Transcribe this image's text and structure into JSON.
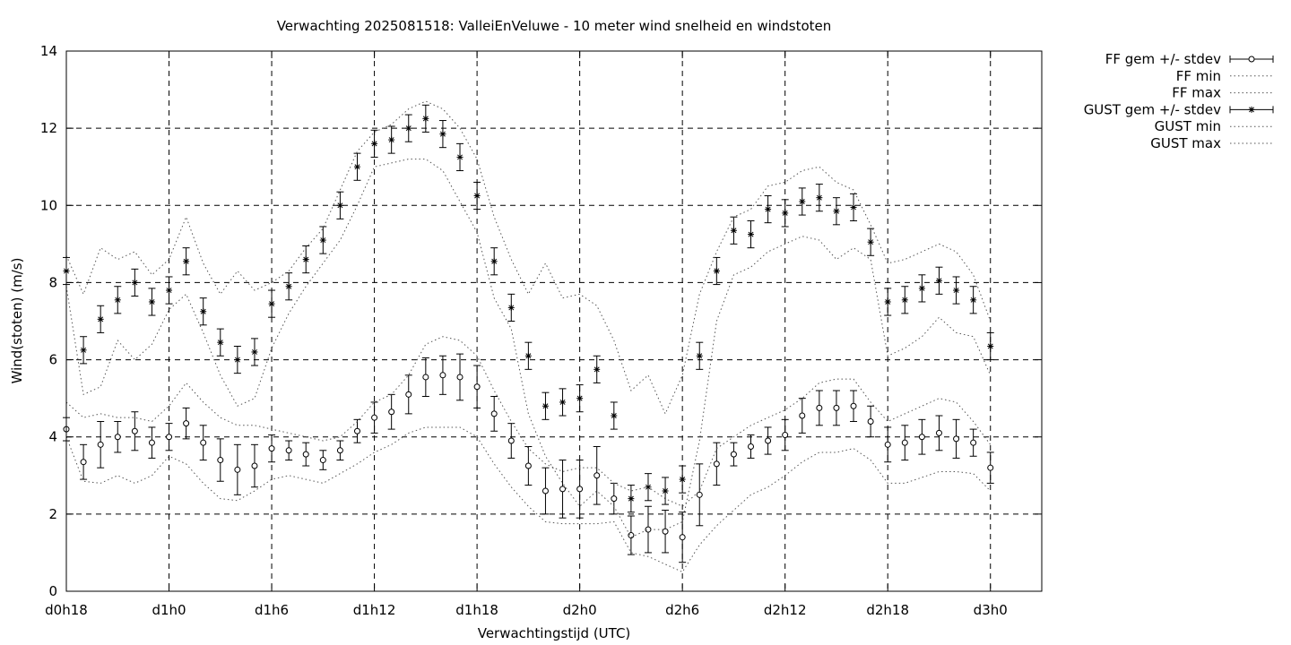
{
  "chart_data": {
    "type": "line",
    "title": "Verwachting 2025081518: ValleiEnVeluwe - 10 meter wind snelheid en windstoten",
    "xlabel": "Verwachtingstijd (UTC)",
    "ylabel": "Wind(stoten) (m/s)",
    "ylim": [
      0,
      14
    ],
    "yticks": [
      0,
      2,
      4,
      6,
      8,
      10,
      12,
      14
    ],
    "xlim": [
      18,
      75
    ],
    "xticks": [
      {
        "value": 18,
        "label": "d0h18"
      },
      {
        "value": 24,
        "label": "d1h0"
      },
      {
        "value": 30,
        "label": "d1h6"
      },
      {
        "value": 36,
        "label": "d1h12"
      },
      {
        "value": 42,
        "label": "d1h18"
      },
      {
        "value": 48,
        "label": "d2h0"
      },
      {
        "value": 54,
        "label": "d2h6"
      },
      {
        "value": 60,
        "label": "d2h12"
      },
      {
        "value": 66,
        "label": "d2h18"
      },
      {
        "value": 72,
        "label": "d3h0"
      }
    ],
    "grid": true,
    "legend_position": "right-outside",
    "x": [
      18,
      19,
      20,
      21,
      22,
      23,
      24,
      25,
      26,
      27,
      28,
      29,
      30,
      31,
      32,
      33,
      34,
      35,
      36,
      37,
      38,
      39,
      40,
      41,
      42,
      43,
      44,
      45,
      46,
      47,
      48,
      49,
      50,
      51,
      52,
      53,
      54,
      55,
      56,
      57,
      58,
      59,
      60,
      61,
      62,
      63,
      64,
      65,
      66,
      67,
      68,
      69,
      70,
      71,
      72
    ],
    "series": [
      {
        "name": "FF gem +/- stdev",
        "style": "points-errorbars",
        "marker": "circle",
        "values": [
          4.2,
          3.35,
          3.8,
          4.0,
          4.15,
          3.85,
          4.0,
          4.35,
          3.85,
          3.4,
          3.15,
          3.25,
          3.7,
          3.65,
          3.55,
          3.4,
          3.65,
          4.15,
          4.5,
          4.65,
          5.1,
          5.55,
          5.6,
          5.55,
          5.3,
          4.6,
          3.9,
          3.25,
          2.6,
          2.65,
          2.65,
          3.0,
          2.4,
          1.45,
          1.6,
          1.55,
          1.4,
          2.5,
          3.3,
          3.55,
          3.75,
          3.9,
          4.05,
          4.55,
          4.75,
          4.75,
          4.8,
          4.4,
          3.8,
          3.85,
          4.0,
          4.1,
          3.95,
          3.85,
          3.2
        ],
        "stdev": [
          0.3,
          0.45,
          0.6,
          0.4,
          0.5,
          0.4,
          0.35,
          0.4,
          0.45,
          0.55,
          0.65,
          0.55,
          0.35,
          0.25,
          0.3,
          0.25,
          0.25,
          0.3,
          0.4,
          0.45,
          0.5,
          0.5,
          0.5,
          0.6,
          0.55,
          0.45,
          0.45,
          0.5,
          0.6,
          0.75,
          0.75,
          0.75,
          0.4,
          0.5,
          0.6,
          0.55,
          0.65,
          0.8,
          0.55,
          0.3,
          0.3,
          0.35,
          0.4,
          0.45,
          0.45,
          0.45,
          0.4,
          0.4,
          0.45,
          0.45,
          0.45,
          0.45,
          0.5,
          0.35,
          0.4
        ]
      },
      {
        "name": "FF min",
        "style": "dotted-line",
        "values": [
          4.0,
          2.85,
          2.8,
          3.0,
          2.8,
          3.0,
          3.5,
          3.3,
          2.8,
          2.4,
          2.35,
          2.6,
          2.9,
          3.0,
          2.9,
          2.8,
          3.05,
          3.3,
          3.6,
          3.8,
          4.1,
          4.25,
          4.25,
          4.25,
          4.0,
          3.3,
          2.7,
          2.2,
          1.8,
          1.75,
          1.75,
          1.75,
          1.8,
          1.0,
          0.9,
          0.7,
          0.5,
          1.2,
          1.7,
          2.1,
          2.5,
          2.7,
          3.0,
          3.35,
          3.6,
          3.6,
          3.7,
          3.4,
          2.8,
          2.8,
          2.95,
          3.1,
          3.1,
          3.05,
          2.6
        ]
      },
      {
        "name": "FF max",
        "style": "dotted-line",
        "values": [
          4.9,
          4.5,
          4.6,
          4.5,
          4.5,
          4.4,
          4.8,
          5.4,
          4.9,
          4.5,
          4.3,
          4.3,
          4.2,
          4.1,
          4.0,
          3.9,
          4.0,
          4.4,
          4.9,
          5.1,
          5.6,
          6.4,
          6.6,
          6.5,
          6.1,
          5.2,
          4.4,
          3.7,
          3.3,
          3.1,
          3.2,
          3.2,
          2.8,
          2.6,
          2.7,
          2.4,
          2.2,
          2.6,
          3.7,
          4.0,
          4.3,
          4.5,
          4.7,
          5.0,
          5.4,
          5.5,
          5.5,
          4.9,
          4.4,
          4.6,
          4.8,
          5.0,
          4.9,
          4.4,
          3.8
        ]
      },
      {
        "name": "GUST gem +/- stdev",
        "style": "points-errorbars",
        "marker": "star",
        "values": [
          8.3,
          6.25,
          7.05,
          7.55,
          8.0,
          7.5,
          7.8,
          8.55,
          7.25,
          6.45,
          6.0,
          6.2,
          7.45,
          7.9,
          8.6,
          9.1,
          10.0,
          11.0,
          11.6,
          11.7,
          12.0,
          12.25,
          11.85,
          11.25,
          10.25,
          8.55,
          7.35,
          6.1,
          4.8,
          4.9,
          5.0,
          5.75,
          4.55,
          2.4,
          2.7,
          2.6,
          2.9,
          6.1,
          8.3,
          9.35,
          9.25,
          9.9,
          9.8,
          10.1,
          10.2,
          9.85,
          9.95,
          9.05,
          7.5,
          7.55,
          7.85,
          8.05,
          7.8,
          7.55,
          6.35
        ]
      },
      {
        "name": "GUST min",
        "style": "dotted-line",
        "values": [
          7.9,
          5.1,
          5.3,
          6.5,
          6.0,
          6.4,
          7.3,
          7.7,
          6.7,
          5.6,
          4.8,
          5.0,
          6.3,
          7.2,
          7.9,
          8.5,
          9.1,
          10.0,
          11.0,
          11.1,
          11.2,
          11.2,
          10.9,
          10.1,
          9.3,
          7.6,
          6.8,
          4.6,
          3.5,
          2.8,
          2.2,
          2.6,
          2.2,
          1.4,
          1.6,
          1.6,
          1.8,
          3.9,
          7.0,
          8.2,
          8.4,
          8.8,
          9.0,
          9.2,
          9.1,
          8.6,
          8.9,
          8.6,
          6.1,
          6.3,
          6.6,
          7.1,
          6.7,
          6.6,
          5.6
        ]
      },
      {
        "name": "GUST max",
        "style": "dotted-line",
        "values": [
          8.7,
          7.7,
          8.9,
          8.6,
          8.8,
          8.2,
          8.6,
          9.7,
          8.5,
          7.7,
          8.3,
          7.8,
          8.0,
          8.3,
          8.9,
          9.4,
          10.4,
          11.4,
          11.9,
          12.1,
          12.5,
          12.7,
          12.5,
          12.0,
          11.2,
          9.7,
          8.6,
          7.7,
          8.5,
          7.6,
          7.7,
          7.4,
          6.5,
          5.2,
          5.6,
          4.6,
          5.6,
          7.7,
          8.8,
          9.7,
          9.9,
          10.5,
          10.6,
          10.9,
          11.0,
          10.6,
          10.4,
          9.5,
          8.5,
          8.6,
          8.8,
          9.0,
          8.8,
          8.2,
          7.0
        ]
      }
    ]
  }
}
